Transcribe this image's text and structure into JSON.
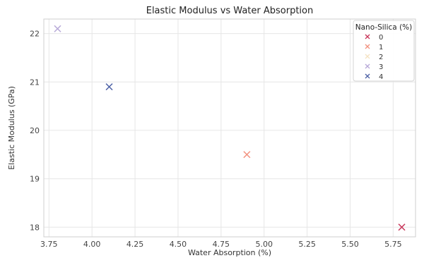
{
  "chart_data": {
    "type": "scatter",
    "title": "Elastic Modulus vs Water Absorption",
    "xlabel": "Water Absorption (%)",
    "ylabel": "Elastic Modulus (GPa)",
    "xlim": [
      3.72,
      5.88
    ],
    "ylim": [
      17.8,
      22.3
    ],
    "xticks": [
      3.75,
      4.0,
      4.25,
      4.5,
      4.75,
      5.0,
      5.25,
      5.5,
      5.75
    ],
    "xtick_labels": [
      "3.75",
      "4.00",
      "4.25",
      "4.50",
      "4.75",
      "5.00",
      "5.25",
      "5.50",
      "5.75"
    ],
    "yticks": [
      18,
      19,
      20,
      21,
      22
    ],
    "ytick_labels": [
      "18",
      "19",
      "20",
      "21",
      "22"
    ],
    "grid": true,
    "marker": "x",
    "legend": {
      "title": "Nano-Silica (%)",
      "placement": "top-right"
    },
    "series": [
      {
        "name": "0",
        "color": "#c8365a",
        "x": [
          5.8
        ],
        "y": [
          18.0
        ]
      },
      {
        "name": "1",
        "color": "#f2917e",
        "x": [
          4.9
        ],
        "y": [
          19.5
        ]
      },
      {
        "name": "2",
        "color": "#f5e2c2",
        "x": [],
        "y": []
      },
      {
        "name": "3",
        "color": "#b7a9d8",
        "x": [
          3.8
        ],
        "y": [
          22.1
        ]
      },
      {
        "name": "4",
        "color": "#4e62a6",
        "x": [
          4.1
        ],
        "y": [
          20.9
        ]
      }
    ]
  }
}
